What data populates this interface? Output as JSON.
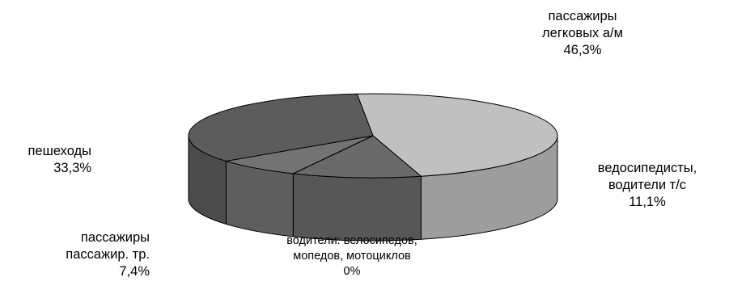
{
  "chart_data": {
    "type": "pie",
    "style": "3d",
    "slices": [
      {
        "label_lines": [
          "пассажиры",
          "легковых а/м"
        ],
        "value_label": "46,3%",
        "value": 46.3,
        "color": "#c0c0c0"
      },
      {
        "label_lines": [
          "ведосипедисты,",
          "водители т/с"
        ],
        "value_label": "11,1%",
        "value": 11.1,
        "color": "#6a6a6a"
      },
      {
        "label_lines": [
          "водители: велосипедов,",
          "мопедов, мотоциклов"
        ],
        "value_label": "0%",
        "value": 0,
        "color": "#808080"
      },
      {
        "label_lines": [
          "пассажиры",
          "пассажир. тр."
        ],
        "value_label": "7,4%",
        "value": 7.4,
        "color": "#737373"
      },
      {
        "label_lines": [
          "пешеходы"
        ],
        "value_label": "33,3%",
        "value": 33.3,
        "color": "#5c5c5c"
      }
    ]
  }
}
